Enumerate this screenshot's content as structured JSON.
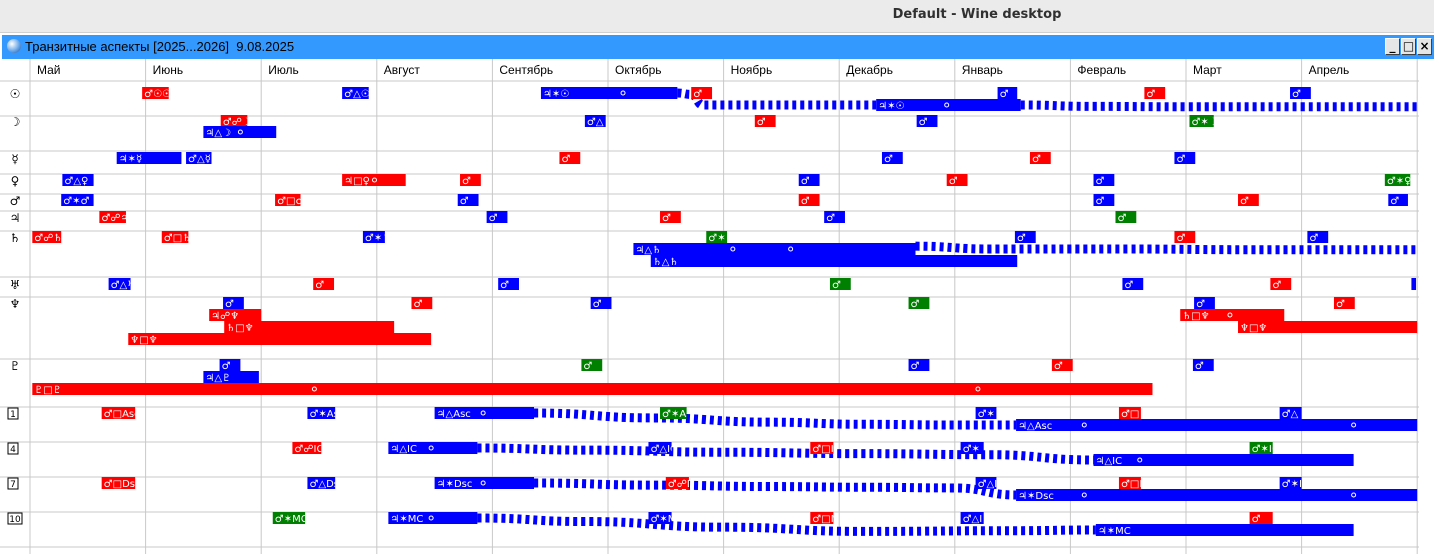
{
  "desktop": {
    "title": "Default - Wine desktop"
  },
  "window": {
    "title": "Транзитные аспекты [2025...2026]  9.08.2025",
    "buttons": {
      "minimize": "_",
      "maximize": "□",
      "close": "×"
    }
  },
  "colors": {
    "red": "#ff0000",
    "blue": "#0000ff",
    "green": "#008000",
    "grid": "#c8c8c8",
    "titlebar": "#3399ff"
  },
  "months": [
    "Май",
    "Июнь",
    "Июль",
    "Август",
    "Сентябрь",
    "Октябрь",
    "Ноябрь",
    "Декабрь",
    "Январь",
    "Февраль",
    "Март",
    "Апрель"
  ],
  "rows": [
    {
      "glyph": "☉"
    },
    {
      "glyph": "☽"
    },
    {
      "glyph": "☿"
    },
    {
      "glyph": "♀"
    },
    {
      "glyph": "♂"
    },
    {
      "glyph": "♃"
    },
    {
      "glyph": "♄"
    },
    {
      "glyph": "♅"
    },
    {
      "glyph": "♆"
    },
    {
      "glyph": "♇"
    },
    {
      "glyph": "1",
      "house": true
    },
    {
      "glyph": "4",
      "house": true
    },
    {
      "glyph": "7",
      "house": true
    },
    {
      "glyph": "10",
      "house": true
    }
  ],
  "aspects": [
    {
      "row": 0,
      "lane": 0,
      "start": 0.97,
      "end": 1.2,
      "color": "red",
      "label": "♂☉☉"
    },
    {
      "row": 0,
      "lane": 0,
      "start": 2.7,
      "end": 2.93,
      "color": "blue",
      "label": "♂△☉"
    },
    {
      "row": 0,
      "lane": 0,
      "start": 4.42,
      "end": 5.6,
      "color": "blue",
      "label": "♃✶☉",
      "dot": 5.13
    },
    {
      "row": 0,
      "lane": 0,
      "start": 5.72,
      "end": 5.9,
      "color": "red",
      "label": "♂"
    },
    {
      "row": 0,
      "lane": 0,
      "start": 8.37,
      "end": 8.54,
      "color": "blue",
      "label": "♂"
    },
    {
      "row": 0,
      "lane": 0,
      "start": 9.64,
      "end": 9.82,
      "color": "red",
      "label": "♂"
    },
    {
      "row": 0,
      "lane": 0,
      "start": 10.9,
      "end": 11.08,
      "color": "blue",
      "label": "♂"
    },
    {
      "row": 0,
      "lane": 1,
      "start": 7.32,
      "end": 8.57,
      "color": "blue",
      "label": "♃✶☉",
      "dot": 7.93
    },
    {
      "row": 1,
      "lane": 0,
      "start": 1.65,
      "end": 1.88,
      "color": "red",
      "label": "♂☍☽"
    },
    {
      "row": 1,
      "lane": 0,
      "start": 4.8,
      "end": 4.98,
      "color": "blue",
      "label": "♂△☽"
    },
    {
      "row": 1,
      "lane": 0,
      "start": 6.27,
      "end": 6.45,
      "color": "red",
      "label": "♂"
    },
    {
      "row": 1,
      "lane": 0,
      "start": 7.67,
      "end": 7.85,
      "color": "blue",
      "label": "♂"
    },
    {
      "row": 1,
      "lane": 0,
      "start": 10.03,
      "end": 10.24,
      "color": "green",
      "label": "♂✶☽"
    },
    {
      "row": 1,
      "lane": 1,
      "start": 1.5,
      "end": 2.13,
      "color": "blue",
      "label": "♃△☽",
      "dot": 1.82
    },
    {
      "row": 2,
      "lane": 0,
      "start": 0.75,
      "end": 1.31,
      "color": "blue",
      "label": "♃✶☿"
    },
    {
      "row": 2,
      "lane": 0,
      "start": 1.35,
      "end": 1.57,
      "color": "blue",
      "label": "♂△☿"
    },
    {
      "row": 2,
      "lane": 0,
      "start": 4.58,
      "end": 4.76,
      "color": "red",
      "label": "♂"
    },
    {
      "row": 2,
      "lane": 0,
      "start": 7.37,
      "end": 7.55,
      "color": "blue",
      "label": "♂"
    },
    {
      "row": 2,
      "lane": 0,
      "start": 8.65,
      "end": 8.83,
      "color": "red",
      "label": "♂"
    },
    {
      "row": 2,
      "lane": 0,
      "start": 9.9,
      "end": 10.08,
      "color": "blue",
      "label": "♂"
    },
    {
      "row": 3,
      "lane": 0,
      "start": 0.28,
      "end": 0.55,
      "color": "blue",
      "label": "♂△♀"
    },
    {
      "row": 3,
      "lane": 0,
      "start": 2.7,
      "end": 3.25,
      "color": "red",
      "label": "♃□♀",
      "dot": 2.98
    },
    {
      "row": 3,
      "lane": 0,
      "start": 3.72,
      "end": 3.9,
      "color": "red",
      "label": "♂"
    },
    {
      "row": 3,
      "lane": 0,
      "start": 6.65,
      "end": 6.83,
      "color": "blue",
      "label": "♂"
    },
    {
      "row": 3,
      "lane": 0,
      "start": 7.93,
      "end": 8.11,
      "color": "red",
      "label": "♂"
    },
    {
      "row": 3,
      "lane": 0,
      "start": 9.2,
      "end": 9.38,
      "color": "blue",
      "label": "♂"
    },
    {
      "row": 3,
      "lane": 0,
      "start": 11.72,
      "end": 11.94,
      "color": "green",
      "label": "♂✶♀"
    },
    {
      "row": 4,
      "lane": 0,
      "start": 0.27,
      "end": 0.55,
      "color": "blue",
      "label": "♂✶♂"
    },
    {
      "row": 4,
      "lane": 0,
      "start": 2.12,
      "end": 2.34,
      "color": "red",
      "label": "♂□♂"
    },
    {
      "row": 4,
      "lane": 0,
      "start": 3.7,
      "end": 3.88,
      "color": "blue",
      "label": "♂"
    },
    {
      "row": 4,
      "lane": 0,
      "start": 6.65,
      "end": 6.83,
      "color": "red",
      "label": "♂"
    },
    {
      "row": 4,
      "lane": 0,
      "start": 9.2,
      "end": 9.38,
      "color": "blue",
      "label": "♂"
    },
    {
      "row": 4,
      "lane": 0,
      "start": 10.45,
      "end": 10.63,
      "color": "red",
      "label": "♂"
    },
    {
      "row": 4,
      "lane": 0,
      "start": 11.75,
      "end": 11.92,
      "color": "blue",
      "label": "♂"
    },
    {
      "row": 5,
      "lane": 0,
      "start": 0.6,
      "end": 0.83,
      "color": "red",
      "label": "♂☍♃"
    },
    {
      "row": 5,
      "lane": 0,
      "start": 3.95,
      "end": 4.13,
      "color": "blue",
      "label": "♂"
    },
    {
      "row": 5,
      "lane": 0,
      "start": 5.45,
      "end": 5.63,
      "color": "red",
      "label": "♂"
    },
    {
      "row": 5,
      "lane": 0,
      "start": 6.87,
      "end": 7.05,
      "color": "blue",
      "label": "♂"
    },
    {
      "row": 5,
      "lane": 0,
      "start": 9.39,
      "end": 9.57,
      "color": "green",
      "label": "♂"
    },
    {
      "row": 6,
      "lane": 0,
      "start": 0.02,
      "end": 0.27,
      "color": "red",
      "label": "♂☍♄"
    },
    {
      "row": 6,
      "lane": 0,
      "start": 1.14,
      "end": 1.37,
      "color": "red",
      "label": "♂□♄"
    },
    {
      "row": 6,
      "lane": 0,
      "start": 2.88,
      "end": 3.07,
      "color": "blue",
      "label": "♂✶♄"
    },
    {
      "row": 6,
      "lane": 0,
      "start": 5.85,
      "end": 6.03,
      "color": "green",
      "label": "♂✶♄"
    },
    {
      "row": 6,
      "lane": 0,
      "start": 8.52,
      "end": 8.7,
      "color": "blue",
      "label": "♂"
    },
    {
      "row": 6,
      "lane": 0,
      "start": 9.9,
      "end": 10.08,
      "color": "red",
      "label": "♂"
    },
    {
      "row": 6,
      "lane": 0,
      "start": 11.05,
      "end": 11.23,
      "color": "blue",
      "label": "♂"
    },
    {
      "row": 6,
      "lane": 1,
      "start": 5.22,
      "end": 7.66,
      "color": "blue",
      "label": "♃△♄",
      "dot1": 6.08,
      "dot2": 6.58
    },
    {
      "row": 6,
      "lane": 2,
      "start": 5.37,
      "end": 8.54,
      "color": "blue",
      "label": "♄△♄"
    },
    {
      "row": 7,
      "lane": 0,
      "start": 0.68,
      "end": 0.87,
      "color": "blue",
      "label": "♂△♅"
    },
    {
      "row": 7,
      "lane": 0,
      "start": 2.45,
      "end": 2.63,
      "color": "red",
      "label": "♂"
    },
    {
      "row": 7,
      "lane": 0,
      "start": 4.05,
      "end": 4.23,
      "color": "blue",
      "label": "♂"
    },
    {
      "row": 7,
      "lane": 0,
      "start": 6.92,
      "end": 7.1,
      "color": "green",
      "label": "♂"
    },
    {
      "row": 7,
      "lane": 0,
      "start": 9.45,
      "end": 9.63,
      "color": "blue",
      "label": "♂"
    },
    {
      "row": 7,
      "lane": 0,
      "start": 10.73,
      "end": 10.91,
      "color": "red",
      "label": "♂"
    },
    {
      "row": 7,
      "lane": 0,
      "start": 11.95,
      "end": 11.99,
      "color": "blue",
      "label": ""
    },
    {
      "row": 8,
      "lane": 0,
      "start": 1.67,
      "end": 1.85,
      "color": "blue",
      "label": "♂"
    },
    {
      "row": 8,
      "lane": 0,
      "start": 3.3,
      "end": 3.48,
      "color": "red",
      "label": "♂"
    },
    {
      "row": 8,
      "lane": 0,
      "start": 4.85,
      "end": 5.03,
      "color": "blue",
      "label": "♂"
    },
    {
      "row": 8,
      "lane": 0,
      "start": 7.6,
      "end": 7.78,
      "color": "green",
      "label": "♂"
    },
    {
      "row": 8,
      "lane": 0,
      "start": 10.07,
      "end": 10.25,
      "color": "blue",
      "label": "♂"
    },
    {
      "row": 8,
      "lane": 0,
      "start": 11.28,
      "end": 11.46,
      "color": "red",
      "label": "♂"
    },
    {
      "row": 8,
      "lane": 1,
      "start": 1.55,
      "end": 2.0,
      "color": "red",
      "label": "♃☍♆"
    },
    {
      "row": 8,
      "lane": 1,
      "start": 9.95,
      "end": 10.85,
      "color": "red",
      "label": "♄□♆",
      "dot": 10.38
    },
    {
      "row": 8,
      "lane": 2,
      "start": 1.68,
      "end": 3.15,
      "color": "red",
      "label": "♄□♆"
    },
    {
      "row": 8,
      "lane": 2,
      "start": 10.45,
      "end": 12.0,
      "color": "red",
      "label": "♆□♆"
    },
    {
      "row": 8,
      "lane": 3,
      "start": 0.85,
      "end": 3.47,
      "color": "red",
      "label": "♆□♆"
    },
    {
      "row": 9,
      "lane": 0,
      "start": 1.64,
      "end": 1.82,
      "color": "blue",
      "label": "♂"
    },
    {
      "row": 9,
      "lane": 0,
      "start": 4.77,
      "end": 4.95,
      "color": "green",
      "label": "♂"
    },
    {
      "row": 9,
      "lane": 0,
      "start": 7.6,
      "end": 7.78,
      "color": "blue",
      "label": "♂"
    },
    {
      "row": 9,
      "lane": 0,
      "start": 8.84,
      "end": 9.02,
      "color": "red",
      "label": "♂"
    },
    {
      "row": 9,
      "lane": 0,
      "start": 10.06,
      "end": 10.24,
      "color": "blue",
      "label": "♂"
    },
    {
      "row": 9,
      "lane": 1,
      "start": 1.5,
      "end": 1.98,
      "color": "blue",
      "label": "♃△♇"
    },
    {
      "row": 9,
      "lane": 2,
      "start": 0.02,
      "end": 9.71,
      "color": "red",
      "label": "♇□♇",
      "dot1": 2.46,
      "dot2": 8.2
    },
    {
      "row": 10,
      "lane": 0,
      "start": 0.62,
      "end": 0.91,
      "color": "red",
      "label": "♂□Asc"
    },
    {
      "row": 10,
      "lane": 0,
      "start": 2.4,
      "end": 2.64,
      "color": "blue",
      "label": "♂✶Asc"
    },
    {
      "row": 10,
      "lane": 0,
      "start": 3.5,
      "end": 4.36,
      "color": "blue",
      "label": "♃△Asc",
      "dot": 3.92
    },
    {
      "row": 10,
      "lane": 0,
      "start": 5.45,
      "end": 5.68,
      "color": "green",
      "label": "♂✶Asc"
    },
    {
      "row": 10,
      "lane": 0,
      "start": 8.18,
      "end": 8.36,
      "color": "blue",
      "label": "♂✶"
    },
    {
      "row": 10,
      "lane": 0,
      "start": 9.42,
      "end": 9.61,
      "color": "red",
      "label": "♂□"
    },
    {
      "row": 10,
      "lane": 0,
      "start": 10.81,
      "end": 11.0,
      "color": "blue",
      "label": "♂△"
    },
    {
      "row": 10,
      "lane": 1,
      "start": 8.53,
      "end": 12.0,
      "color": "blue",
      "label": "♃△Asc",
      "dot1": 9.12,
      "dot2": 11.45
    },
    {
      "row": 11,
      "lane": 0,
      "start": 2.27,
      "end": 2.52,
      "color": "red",
      "label": "♂☍IC"
    },
    {
      "row": 11,
      "lane": 0,
      "start": 3.1,
      "end": 3.87,
      "color": "blue",
      "label": "♃△IC",
      "dot": 3.47
    },
    {
      "row": 11,
      "lane": 0,
      "start": 5.35,
      "end": 5.55,
      "color": "blue",
      "label": "♂△IC"
    },
    {
      "row": 11,
      "lane": 0,
      "start": 6.75,
      "end": 6.95,
      "color": "red",
      "label": "♂□IC"
    },
    {
      "row": 11,
      "lane": 0,
      "start": 8.05,
      "end": 8.25,
      "color": "blue",
      "label": "♂✶"
    },
    {
      "row": 11,
      "lane": 0,
      "start": 10.55,
      "end": 10.75,
      "color": "green",
      "label": "♂✶IC"
    },
    {
      "row": 11,
      "lane": 1,
      "start": 9.2,
      "end": 11.45,
      "color": "blue",
      "label": "♃△IC",
      "dot": 9.6
    },
    {
      "row": 12,
      "lane": 0,
      "start": 0.62,
      "end": 0.91,
      "color": "red",
      "label": "♂□Dsc"
    },
    {
      "row": 12,
      "lane": 0,
      "start": 2.4,
      "end": 2.64,
      "color": "blue",
      "label": "♂△Dsc"
    },
    {
      "row": 12,
      "lane": 0,
      "start": 3.5,
      "end": 4.36,
      "color": "blue",
      "label": "♃✶Dsc",
      "dot": 3.92
    },
    {
      "row": 12,
      "lane": 0,
      "start": 5.5,
      "end": 5.7,
      "color": "red",
      "label": "♂☍Dsc"
    },
    {
      "row": 12,
      "lane": 0,
      "start": 8.18,
      "end": 8.36,
      "color": "blue",
      "label": "♂△I"
    },
    {
      "row": 12,
      "lane": 0,
      "start": 9.42,
      "end": 9.61,
      "color": "red",
      "label": "♂□I"
    },
    {
      "row": 12,
      "lane": 0,
      "start": 10.81,
      "end": 11.0,
      "color": "blue",
      "label": "♂✶I"
    },
    {
      "row": 12,
      "lane": 1,
      "start": 8.53,
      "end": 12.0,
      "color": "blue",
      "label": "♃✶Dsc",
      "dot1": 9.12,
      "dot2": 11.45
    },
    {
      "row": 13,
      "lane": 0,
      "start": 2.1,
      "end": 2.38,
      "color": "green",
      "label": "♂✶MC"
    },
    {
      "row": 13,
      "lane": 0,
      "start": 3.1,
      "end": 3.87,
      "color": "blue",
      "label": "♃✶MC",
      "dot": 3.47
    },
    {
      "row": 13,
      "lane": 0,
      "start": 5.35,
      "end": 5.55,
      "color": "blue",
      "label": "♂✶MC"
    },
    {
      "row": 13,
      "lane": 0,
      "start": 6.75,
      "end": 6.95,
      "color": "red",
      "label": "♂□MC"
    },
    {
      "row": 13,
      "lane": 0,
      "start": 8.05,
      "end": 8.25,
      "color": "blue",
      "label": "♂△I"
    },
    {
      "row": 13,
      "lane": 0,
      "start": 10.55,
      "end": 10.75,
      "color": "red",
      "label": "♂"
    },
    {
      "row": 13,
      "lane": 1,
      "start": 9.22,
      "end": 11.45,
      "color": "blue",
      "label": "♃✶MC"
    }
  ],
  "curves": [
    {
      "row": 0,
      "color": "blue",
      "points": [
        [
          5.6,
          0,
          0
        ],
        [
          5.72,
          0,
          0.2
        ],
        [
          5.82,
          1,
          0
        ],
        [
          7.32,
          1,
          0
        ]
      ]
    },
    {
      "row": 0,
      "color": "blue",
      "points": [
        [
          8.57,
          1,
          0
        ],
        [
          9.2,
          1,
          0.2
        ],
        [
          10.0,
          1,
          0.25
        ],
        [
          11.0,
          1,
          0.25
        ],
        [
          12.0,
          1,
          0.25
        ]
      ]
    },
    {
      "row": 6,
      "color": "blue",
      "points": [
        [
          7.66,
          1,
          -0.4
        ],
        [
          8.3,
          1,
          0
        ],
        [
          9.5,
          1,
          0
        ],
        [
          10.5,
          1,
          0.1
        ],
        [
          12.0,
          1,
          0.1
        ]
      ]
    },
    {
      "row": 10,
      "color": "blue",
      "points": [
        [
          4.36,
          0,
          0
        ],
        [
          5.4,
          0,
          0.7
        ],
        [
          6.4,
          0,
          1.3
        ],
        [
          7.2,
          0,
          1.6
        ],
        [
          8.0,
          0,
          1.7
        ],
        [
          8.53,
          1,
          0
        ]
      ]
    },
    {
      "row": 11,
      "color": "blue",
      "points": [
        [
          3.87,
          0,
          0
        ],
        [
          4.8,
          0,
          0.3
        ],
        [
          6.0,
          0,
          0.6
        ],
        [
          7.2,
          0,
          0.8
        ],
        [
          8.3,
          0,
          0.95
        ],
        [
          9.2,
          1,
          0
        ]
      ]
    },
    {
      "row": 12,
      "color": "blue",
      "points": [
        [
          4.36,
          0,
          0
        ],
        [
          5.4,
          0,
          0.3
        ],
        [
          6.4,
          0,
          0.5
        ],
        [
          7.2,
          0,
          0.6
        ],
        [
          8.0,
          0,
          0.7
        ],
        [
          8.53,
          1,
          0
        ]
      ]
    },
    {
      "row": 13,
      "color": "blue",
      "points": [
        [
          3.87,
          0,
          0
        ],
        [
          4.8,
          0,
          0.5
        ],
        [
          6.0,
          0,
          1.3
        ],
        [
          7.2,
          0,
          1.9
        ],
        [
          8.5,
          0,
          1.8
        ],
        [
          9.22,
          1,
          0
        ]
      ]
    }
  ]
}
